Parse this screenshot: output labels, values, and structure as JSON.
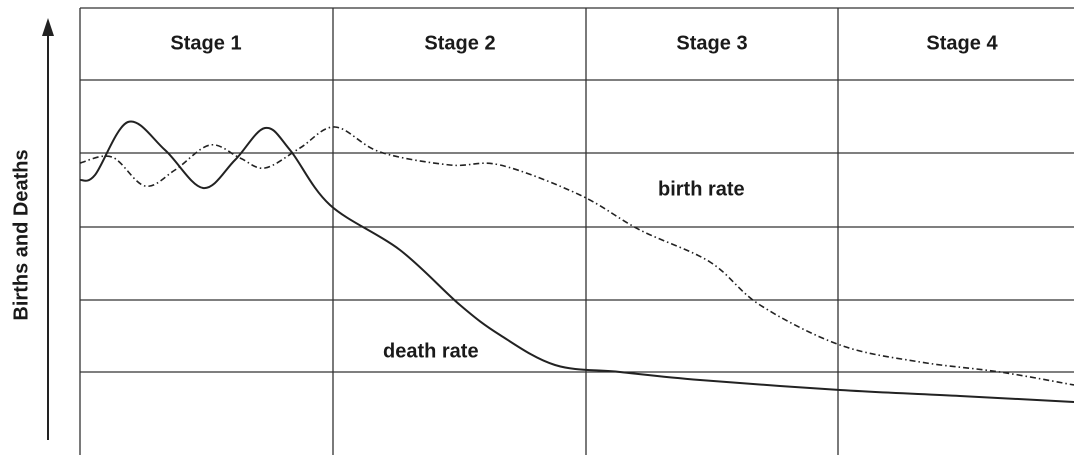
{
  "axis_label": "Births and Deaths",
  "stages": [
    "Stage 1",
    "Stage 2",
    "Stage 3",
    "Stage 4"
  ],
  "curves": {
    "birth": "birth rate",
    "death": "death rate"
  }
}
